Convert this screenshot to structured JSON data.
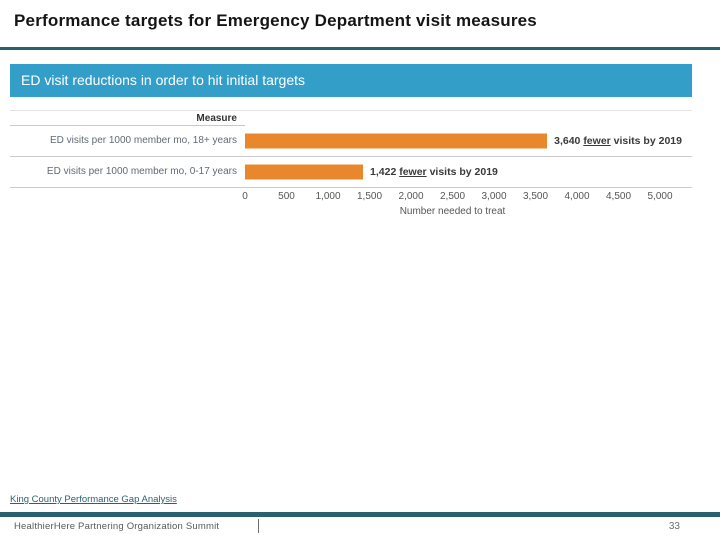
{
  "slide": {
    "title": "Performance targets for Emergency Department visit measures"
  },
  "chart_data": {
    "type": "bar",
    "orientation": "horizontal",
    "title": "ED visit reductions in order to hit initial targets",
    "column_header": "Measure",
    "categories": [
      "ED visits per 1000 member mo, 18+ years",
      "ED visits per 1000 member mo, 0-17 years"
    ],
    "values": [
      3640,
      1422
    ],
    "annotations": [
      {
        "prefix": "3,640 ",
        "underlined": "fewer",
        "suffix": " visits by 2019"
      },
      {
        "prefix": "1,422 ",
        "underlined": "fewer",
        "suffix": " visits by 2019"
      }
    ],
    "xlabel": "Number needed to treat",
    "xlim": [
      0,
      5000
    ],
    "xticks": [
      0,
      500,
      1000,
      1500,
      2000,
      2500,
      3000,
      3500,
      4000,
      4500,
      5000
    ],
    "xtick_labels": [
      "0",
      "500",
      "1,000",
      "1,500",
      "2,000",
      "2,500",
      "3,000",
      "3,500",
      "4,000",
      "4,500",
      "5,000"
    ],
    "grid": "row-dividers-only",
    "legend": "none",
    "bar_color": "#e8872c",
    "header_bg": "#339fc9"
  },
  "footer": {
    "link": "King County Performance Gap Analysis",
    "event": "HealthierHere Partnering Organization Summit",
    "page_number": "33"
  },
  "colors": {
    "accent_teal": "#2a6171",
    "header_blue": "#339fc9",
    "bar_orange": "#e8872c"
  }
}
